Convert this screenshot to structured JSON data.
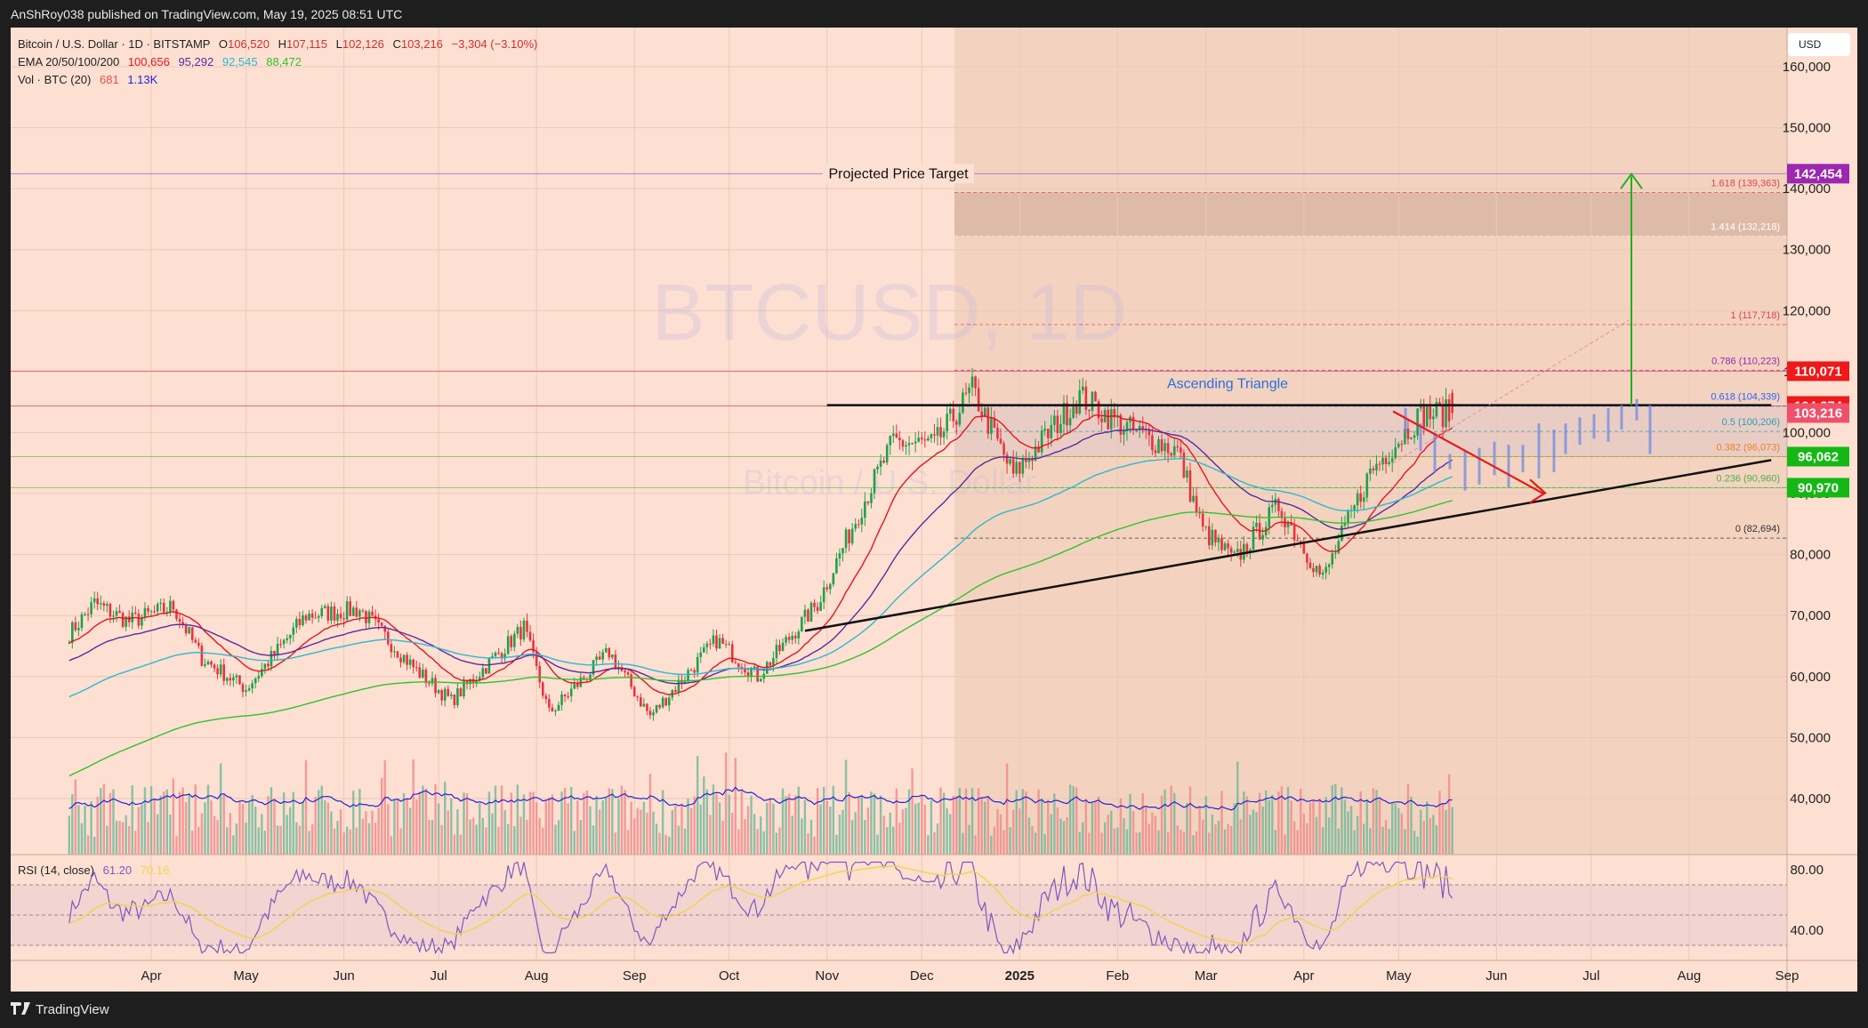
{
  "header": {
    "published": "AnShRoy038 published on TradingView.com, May 19, 2025 08:51 UTC"
  },
  "legend": {
    "symbol_line": "Bitcoin / U.S. Dollar · 1D · BITSTAMP",
    "open_label": "O",
    "open": "106,520",
    "high_label": "H",
    "high": "107,115",
    "low_label": "L",
    "low": "102,126",
    "close_label": "C",
    "close": "103,216",
    "change": "−3,304 (−3.10%)",
    "ema_label": "EMA 20/50/100/200",
    "ema20": "100,656",
    "ema50": "95,292",
    "ema100": "92,545",
    "ema200": "88,472",
    "vol_label": "Vol · BTC (20)",
    "vol": "681",
    "vol_ma": "1.13K",
    "rsi_label": "RSI (14, close)",
    "rsi": "61.20",
    "rsi_ma": "70.16"
  },
  "colors": {
    "background": "#fde0d2",
    "up": "#22a04a",
    "down": "#e8333f",
    "ema20": "#e8141e",
    "ema50": "#5b2a9e",
    "ema100": "#2cb8d0",
    "ema200": "#2fc22f",
    "vol_ma": "#2323d8",
    "rsi": "#7e57c2",
    "rsi_ma": "#f2d34c",
    "fib_text_1618": "#e0405a",
    "fib_text_0786": "#9c27b0",
    "fib_text_0618": "#2962ff",
    "fib_text_05": "#26a0b8",
    "fib_text_0382": "#f08020",
    "fib_text_0236": "#4caf50",
    "target_badge": "#9c27b0",
    "red_badge": "#f01818",
    "close_badge": "#f0506a",
    "green_badge": "#14b814"
  },
  "price_axis": {
    "currency_button": "USD",
    "ticks": [
      "160,000",
      "150,000",
      "140,000",
      "130,000",
      "120,000",
      "110,000",
      "100,000",
      "90,000",
      "80,000",
      "70,000",
      "60,000",
      "50,000",
      "40,000"
    ],
    "tick_values": [
      160000,
      150000,
      140000,
      130000,
      120000,
      110000,
      100000,
      90000,
      80000,
      70000,
      60000,
      50000,
      40000
    ],
    "badges": [
      {
        "label": "142,454",
        "value": 142454,
        "color": "#9c27b0"
      },
      {
        "label": "110,071",
        "value": 110071,
        "color": "#f01818"
      },
      {
        "label": "104,374",
        "value": 104374,
        "color": "#f01818"
      },
      {
        "label": "103,216",
        "value": 103216,
        "color": "#f0506a"
      },
      {
        "label": "96,062",
        "value": 96062,
        "color": "#14b814"
      },
      {
        "label": "90,970",
        "value": 90970,
        "color": "#14b814"
      }
    ]
  },
  "rsi_axis": {
    "ticks": [
      "80.00",
      "40.00"
    ]
  },
  "time_axis": {
    "ticks": [
      "Apr",
      "May",
      "Jun",
      "Jul",
      "Aug",
      "Sep",
      "Oct",
      "Nov",
      "Dec",
      "2025",
      "Feb",
      "Mar",
      "Apr",
      "May",
      "Jun",
      "Jul",
      "Aug",
      "Sep"
    ]
  },
  "annotations": {
    "projected_target": "Projected Price Target",
    "pattern": "Ascending Triangle",
    "watermark_symbol": "BTCUSD, 1D",
    "watermark_name": "Bitcoin / U.S. Dollar"
  },
  "fib_levels": [
    {
      "label": "1.618 (139,363)",
      "value": 139363,
      "color": "#e0405a"
    },
    {
      "label": "1.414 (132,218)",
      "value": 132218,
      "color": "#ffffff"
    },
    {
      "label": "1 (117,718)",
      "value": 117718,
      "color": "#e0405a"
    },
    {
      "label": "0.786 (110,223)",
      "value": 110223,
      "color": "#9c27b0"
    },
    {
      "label": "0.618 (104,339)",
      "value": 104339,
      "color": "#2962ff"
    },
    {
      "label": "0.5 (100,206)",
      "value": 100206,
      "color": "#26a0b8"
    },
    {
      "label": "0.382 (96,073)",
      "value": 96073,
      "color": "#f08020"
    },
    {
      "label": "0.236 (90,960)",
      "value": 90960,
      "color": "#4caf50"
    },
    {
      "label": "0 (82,694)",
      "value": 82694,
      "color": "#333333"
    }
  ],
  "footer": {
    "brand": "TradingView"
  },
  "chart_data": {
    "type": "candlestick",
    "title": "Bitcoin / U.S. Dollar · 1D · BITSTAMP",
    "xlabel": "",
    "ylabel": "USD",
    "ylim": [
      35000,
      165000
    ],
    "x_range": [
      "2024-03-06",
      "2025-09-25"
    ],
    "legend": [
      "EMA 20",
      "EMA 50",
      "EMA 100",
      "EMA 200",
      "Vol · BTC (20)",
      "RSI (14, close)"
    ],
    "last_ohlc": {
      "open": 106520,
      "high": 107115,
      "low": 102126,
      "close": 103216,
      "change": -3304,
      "change_pct": -3.1
    },
    "ema_last": {
      "ema20": 100656,
      "ema50": 95292,
      "ema100": 92545,
      "ema200": 88472
    },
    "approx_close_path": {
      "x": [
        "2024-03-06",
        "2024-03-14",
        "2024-03-25",
        "2024-04-08",
        "2024-04-17",
        "2024-05-01",
        "2024-05-20",
        "2024-06-06",
        "2024-06-24",
        "2024-07-05",
        "2024-07-28",
        "2024-08-05",
        "2024-08-24",
        "2024-09-06",
        "2024-09-27",
        "2024-10-10",
        "2024-10-29",
        "2024-11-12",
        "2024-11-22",
        "2024-12-05",
        "2024-12-17",
        "2024-12-30",
        "2025-01-20",
        "2025-02-03",
        "2025-02-20",
        "2025-02-28",
        "2025-03-10",
        "2025-03-24",
        "2025-04-07",
        "2025-04-22",
        "2025-05-08",
        "2025-05-18"
      ],
      "close": [
        67000,
        72000,
        69000,
        71500,
        63000,
        58000,
        70000,
        71000,
        61000,
        56000,
        68000,
        54000,
        64000,
        53500,
        66000,
        60000,
        72000,
        88000,
        98500,
        98000,
        107000,
        93000,
        106000,
        101000,
        97000,
        84000,
        79000,
        88000,
        76000,
        93500,
        103000,
        103216
      ]
    },
    "trend_lines": {
      "resistance": {
        "price": 104500,
        "from": "2024-11-01",
        "to": "2025-08-27"
      },
      "support": {
        "from": [
          "2024-10-25",
          67500
        ],
        "to": [
          "2025-08-27",
          95500
        ]
      },
      "projected_target": 142454
    },
    "fibonacci": {
      "0": 82694,
      "0.236": 90960,
      "0.382": 96073,
      "0.5": 100206,
      "0.618": 104339,
      "0.786": 110223,
      "1": 117718,
      "1.414": 132218,
      "1.618": 139363
    },
    "horizontal_levels": [
      110071,
      104374,
      96062,
      90970
    ],
    "rsi": {
      "last": 61.2,
      "ma": 70.16,
      "bands": [
        70,
        50,
        30
      ],
      "ylim": [
        20,
        90
      ]
    },
    "volume": {
      "last": 681,
      "ma": 1130
    }
  }
}
